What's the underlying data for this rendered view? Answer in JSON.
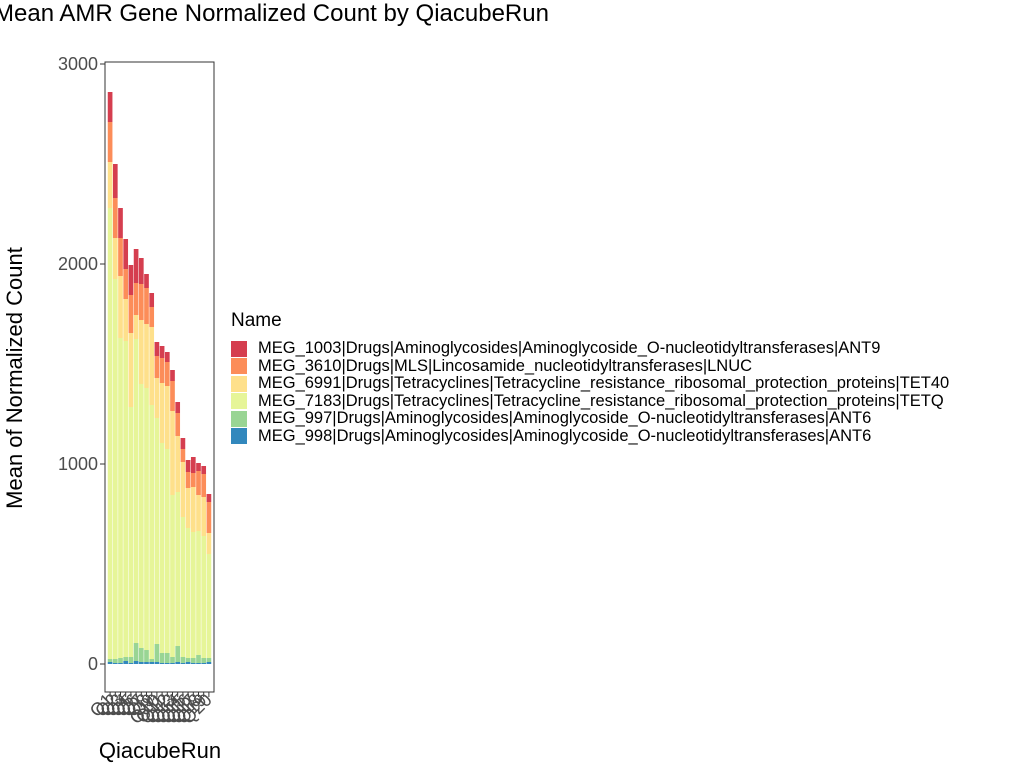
{
  "chart_data": {
    "type": "bar",
    "stacked": true,
    "title": "Mean AMR Gene Normalized Count by QiacubeRun",
    "xlabel": "QiacubeRun",
    "ylabel": "Mean of Normalized Count",
    "ylim": [
      -140,
      3010
    ],
    "yticks": [
      0,
      1000,
      2000,
      3000
    ],
    "grid": false,
    "legend_position": "right",
    "legend_title": "Name",
    "categories": [
      "Q1",
      "Q2",
      "Q3",
      "Q4",
      "Q5",
      "Q6",
      "Q7",
      "Q8",
      "Q9",
      "Q10",
      "Q11",
      "Q12",
      "Q13",
      "Q14",
      "Q15",
      "Q16",
      "Q17",
      "Q18",
      "Q19",
      "Q20"
    ],
    "category_tick_labels": [
      "Q1",
      "Q2",
      "Q3",
      "Q4",
      "Q5",
      "Q6",
      "Q7",
      "Q8",
      "Q9",
      "Q10",
      "Q11",
      "Q12",
      "Q13",
      "Q14",
      "Q15",
      "Q16",
      "Q17",
      "Q18",
      "Q19",
      "Q20"
    ],
    "series": [
      {
        "name": "MEG_998|Drugs|Aminoglycosides|Aminoglycoside_O-nucleotidyltransferases|ANT6",
        "color": "#3288bd",
        "values": [
          10,
          5,
          5,
          15,
          5,
          15,
          10,
          10,
          10,
          10,
          5,
          5,
          5,
          10,
          5,
          10,
          5,
          5,
          5,
          10
        ]
      },
      {
        "name": "MEG_997|Drugs|Aminoglycosides|Aminoglycoside_O-nucleotidyltransferases|ANT6",
        "color": "#99d594",
        "values": [
          15,
          20,
          25,
          20,
          30,
          90,
          70,
          60,
          15,
          90,
          50,
          50,
          30,
          80,
          30,
          20,
          25,
          40,
          25,
          20
        ]
      },
      {
        "name": "MEG_7183|Drugs|Tetracyclines|Tetracycline_resistance_ribosomal_protection_proteins|TETQ",
        "color": "#e6f598",
        "values": [
          2255,
          1900,
          1600,
          1580,
          1250,
          1520,
          1320,
          1310,
          1270,
          1130,
          1050,
          1020,
          810,
          770,
          700,
          650,
          630,
          620,
          610,
          520
        ]
      },
      {
        "name": "MEG_6991|Drugs|Tetracyclines|Tetracycline_resistance_ribosomal_protection_proteins|TET40",
        "color": "#fee08b",
        "values": [
          230,
          205,
          310,
          210,
          370,
          120,
          320,
          320,
          390,
          200,
          300,
          315,
          420,
          280,
          275,
          200,
          225,
          180,
          195,
          105
        ]
      },
      {
        "name": "MEG_3610|Drugs|MLS|Lincosamide_nucleotidyltransferases|LNUC",
        "color": "#fc8d59",
        "values": [
          200,
          200,
          190,
          150,
          190,
          160,
          180,
          180,
          100,
          110,
          125,
          120,
          150,
          115,
          65,
          80,
          70,
          120,
          115,
          155
        ]
      },
      {
        "name": "MEG_1003|Drugs|Aminoglycosides|Aminoglycoside_O-nucleotidyltransferases|ANT9",
        "color": "#d53e4f",
        "values": [
          150,
          170,
          150,
          150,
          150,
          170,
          130,
          70,
          70,
          70,
          60,
          50,
          55,
          55,
          55,
          60,
          80,
          40,
          40,
          40
        ]
      }
    ]
  }
}
